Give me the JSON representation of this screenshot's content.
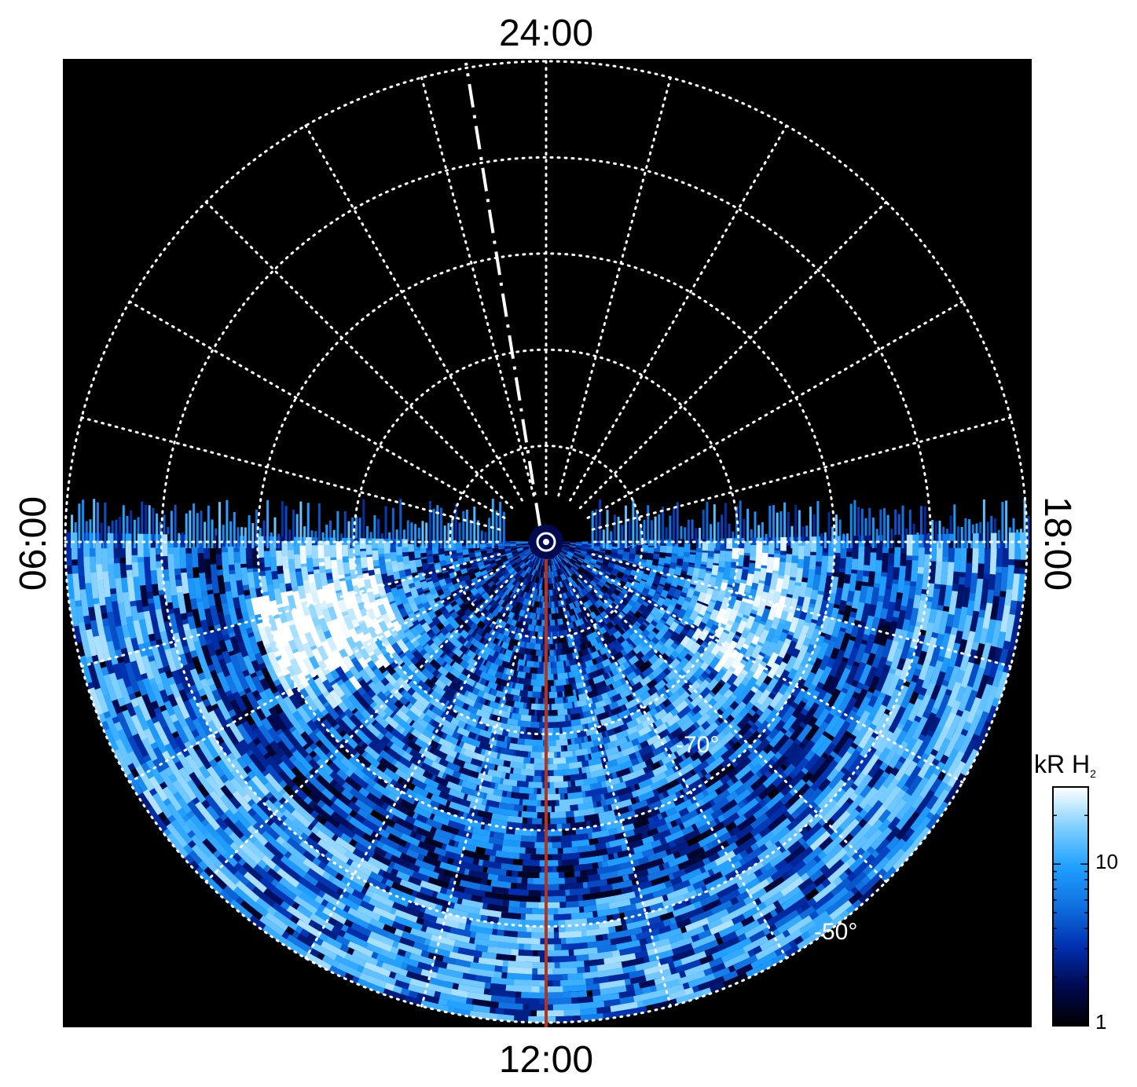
{
  "chart_data": {
    "type": "heatmap",
    "projection": "polar",
    "hemisphere": "south",
    "local_time_labels": {
      "top": "24:00",
      "bottom": "12:00",
      "left": "06:00",
      "right": "18:00"
    },
    "latitude_labels": [
      "-70°",
      "-50°"
    ],
    "latitude_circles_deg": [
      -90,
      -80,
      -70,
      -60,
      -50,
      -40
    ],
    "local_time_spokes_hours": [
      0,
      1,
      2,
      3,
      4,
      5,
      6,
      7,
      8,
      9,
      10,
      11,
      12,
      13,
      14,
      15,
      16,
      17,
      18,
      19,
      20,
      21,
      22,
      23
    ],
    "data_coverage": "12:00 side (dayside) only",
    "colorbar": {
      "label_main": "kR H",
      "label_sub": "2",
      "scale": "log",
      "range": [
        1,
        30
      ],
      "ticks": [
        {
          "value": 1,
          "label": "1"
        },
        {
          "value": 10,
          "label": "10"
        }
      ],
      "colors": [
        "#000000",
        "#000a50",
        "#0030b0",
        "#1070e0",
        "#20a0ff",
        "#80d0ff",
        "#ffffff"
      ]
    },
    "dashed_line": "white dash-dot line toward 24:00",
    "meridian_line": "red line along 12:00",
    "colors": {
      "background": "#000000",
      "grid": "#ffffff",
      "meridian": "#c03010"
    }
  }
}
